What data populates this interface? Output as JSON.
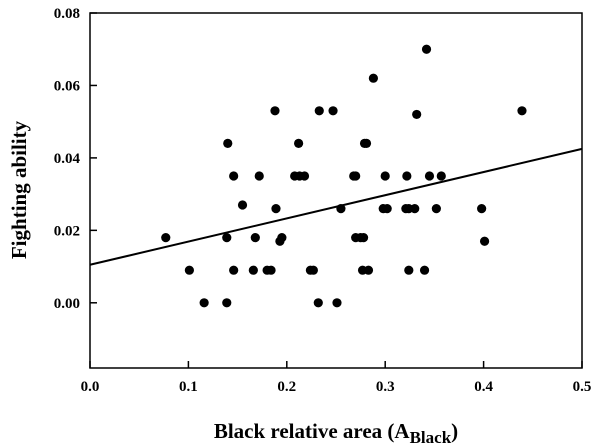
{
  "chart_data": {
    "type": "scatter",
    "title": "",
    "xlabel_main": "Black relative area (A",
    "xlabel_sub": "Black",
    "xlabel_close": ")",
    "ylabel": "Fighting ability",
    "xlim": [
      0.0,
      0.5
    ],
    "ylim": [
      -0.018,
      0.08
    ],
    "xticks": [
      0.0,
      0.1,
      0.2,
      0.3,
      0.4,
      0.5
    ],
    "xtick_labels": [
      "0.0",
      "0.1",
      "0.2",
      "0.3",
      "0.4",
      "0.5"
    ],
    "yticks": [
      0.0,
      0.02,
      0.04,
      0.06,
      0.08
    ],
    "ytick_labels": [
      "0.00",
      "0.02",
      "0.04",
      "0.06",
      "0.08"
    ],
    "grid": false,
    "colors": {
      "points": "#000000",
      "line": "#000000",
      "axes": "#000000"
    },
    "series": [
      {
        "type": "scatter",
        "points": [
          [
            0.077,
            0.018
          ],
          [
            0.101,
            0.009
          ],
          [
            0.116,
            0.0
          ],
          [
            0.139,
            0.0
          ],
          [
            0.139,
            0.018
          ],
          [
            0.14,
            0.044
          ],
          [
            0.146,
            0.035
          ],
          [
            0.146,
            0.009
          ],
          [
            0.155,
            0.027
          ],
          [
            0.166,
            0.009
          ],
          [
            0.168,
            0.018
          ],
          [
            0.172,
            0.035
          ],
          [
            0.18,
            0.009
          ],
          [
            0.184,
            0.009
          ],
          [
            0.188,
            0.053
          ],
          [
            0.189,
            0.026
          ],
          [
            0.193,
            0.017
          ],
          [
            0.195,
            0.018
          ],
          [
            0.208,
            0.035
          ],
          [
            0.213,
            0.035
          ],
          [
            0.212,
            0.044
          ],
          [
            0.218,
            0.035
          ],
          [
            0.224,
            0.009
          ],
          [
            0.227,
            0.009
          ],
          [
            0.232,
            0.0
          ],
          [
            0.233,
            0.053
          ],
          [
            0.247,
            0.053
          ],
          [
            0.251,
            0.0
          ],
          [
            0.255,
            0.026
          ],
          [
            0.268,
            0.035
          ],
          [
            0.27,
            0.035
          ],
          [
            0.27,
            0.018
          ],
          [
            0.275,
            0.018
          ],
          [
            0.278,
            0.018
          ],
          [
            0.277,
            0.009
          ],
          [
            0.279,
            0.044
          ],
          [
            0.281,
            0.044
          ],
          [
            0.283,
            0.009
          ],
          [
            0.288,
            0.062
          ],
          [
            0.298,
            0.026
          ],
          [
            0.3,
            0.035
          ],
          [
            0.302,
            0.026
          ],
          [
            0.321,
            0.026
          ],
          [
            0.322,
            0.035
          ],
          [
            0.324,
            0.026
          ],
          [
            0.324,
            0.009
          ],
          [
            0.33,
            0.026
          ],
          [
            0.332,
            0.052
          ],
          [
            0.34,
            0.009
          ],
          [
            0.342,
            0.07
          ],
          [
            0.345,
            0.035
          ],
          [
            0.352,
            0.026
          ],
          [
            0.357,
            0.035
          ],
          [
            0.398,
            0.026
          ],
          [
            0.401,
            0.017
          ],
          [
            0.439,
            0.053
          ]
        ]
      },
      {
        "type": "line",
        "name": "",
        "points": [
          [
            0.0,
            0.0105
          ],
          [
            0.5,
            0.0425
          ]
        ]
      }
    ]
  }
}
